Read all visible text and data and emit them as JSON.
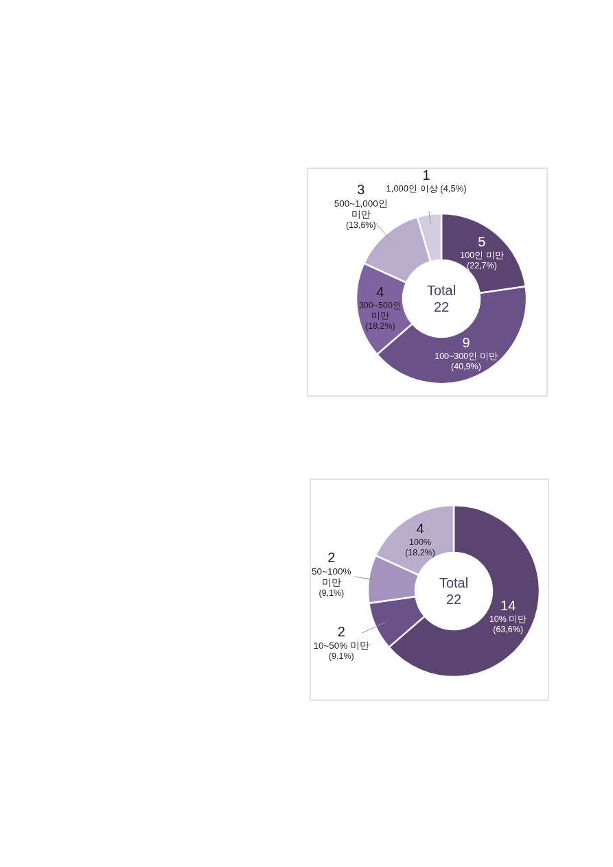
{
  "chart_data": [
    {
      "type": "donut",
      "categories": [
        "100인 미만",
        "100~300인 미만",
        "300~500인 미만",
        "500~1,000인 미만",
        "1,000인 이상"
      ],
      "values": [
        5,
        9,
        4,
        3,
        1
      ],
      "colors": [
        "#5b4570",
        "#6a5288",
        "#7f63a0",
        "#b8aecb",
        "#d3cbde"
      ],
      "data_labels": true,
      "annotations": [
        "Total",
        "22",
        {
          "text": "(22,7%)",
          "x": "100인 미만"
        },
        {
          "text": "(40,9%)",
          "x": "100~300인 미만"
        },
        {
          "text": "(18,2%)",
          "x": "300~500인 미만"
        },
        {
          "text": "(13,6%)",
          "x": "500~1,000인 미만"
        },
        {
          "text": "(4,5%)",
          "x": "1,000인 이상"
        }
      ]
    },
    {
      "type": "donut",
      "categories": [
        "10% 미만",
        "10~50% 미만",
        "50~100% 미만",
        "100%"
      ],
      "values": [
        14,
        2,
        2,
        4
      ],
      "colors": [
        "#5b4570",
        "#6a5288",
        "#a393bd",
        "#b8aecb"
      ],
      "data_labels": true,
      "annotations": [
        "Total",
        "22",
        {
          "text": "(63,6%)",
          "x": "10% 미만"
        },
        {
          "text": "(9,1%)",
          "x": "10~50% 미만"
        },
        {
          "text": "(9,1%)",
          "x": "50~100% 미만"
        },
        {
          "text": "(18,2%)",
          "x": "100%"
        }
      ]
    }
  ]
}
